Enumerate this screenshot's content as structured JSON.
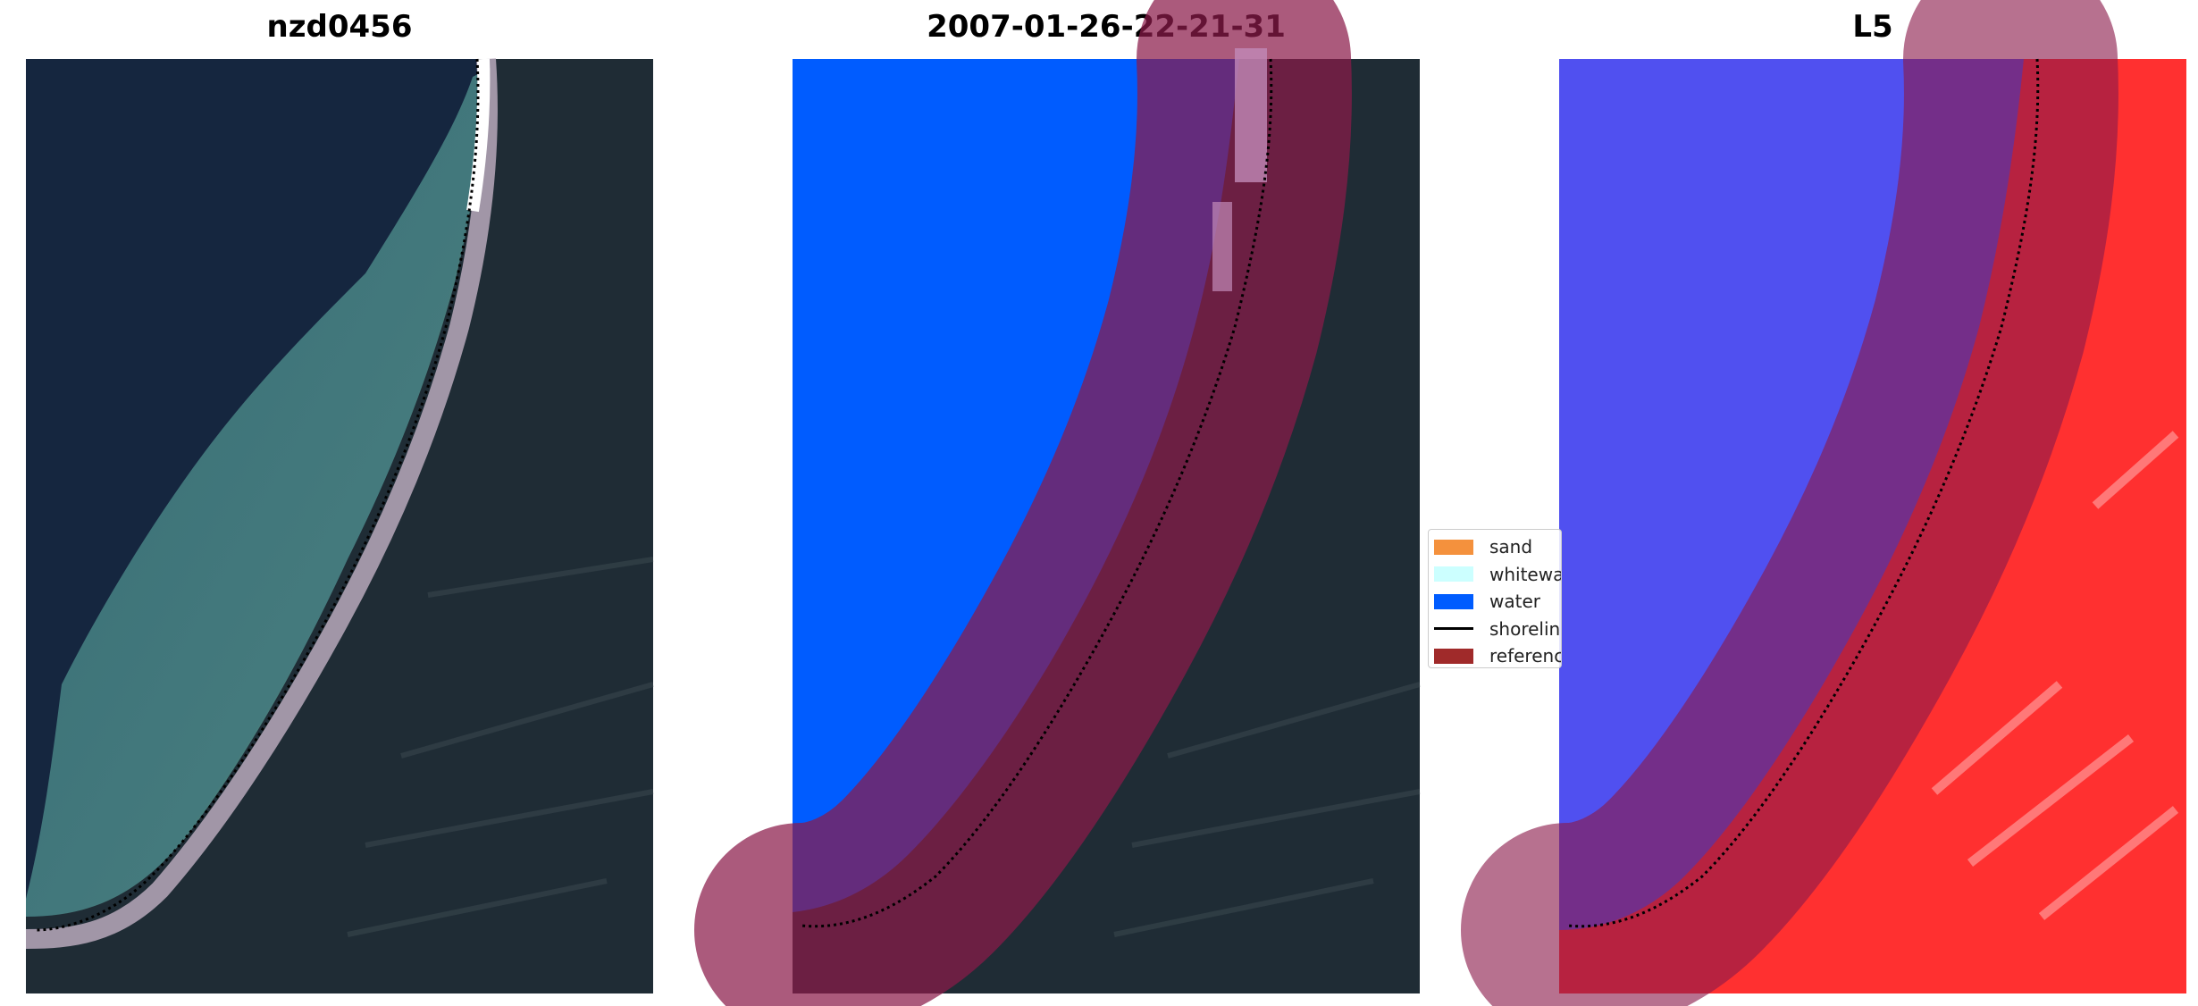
{
  "panels": [
    {
      "title": "nzd0456"
    },
    {
      "title": "2007-01-26-22-21-31"
    },
    {
      "title": "L5"
    }
  ],
  "legend": {
    "items": [
      {
        "label": "sand",
        "color": "#f4913d"
      },
      {
        "label": "whitewater",
        "color": "#ccffff"
      },
      {
        "label": "water",
        "color": "#005cff"
      },
      {
        "label": "shoreline",
        "color": "#000000"
      },
      {
        "label": "reference shoreline buffer",
        "color": "#a02a2a"
      }
    ]
  },
  "colors": {
    "deep_water": "#15263f",
    "land": "#1f2c35",
    "water_class": "#005cff",
    "buffer": "#8a1a4a",
    "index_low": "#4040ff",
    "index_high": "#ff2020"
  }
}
